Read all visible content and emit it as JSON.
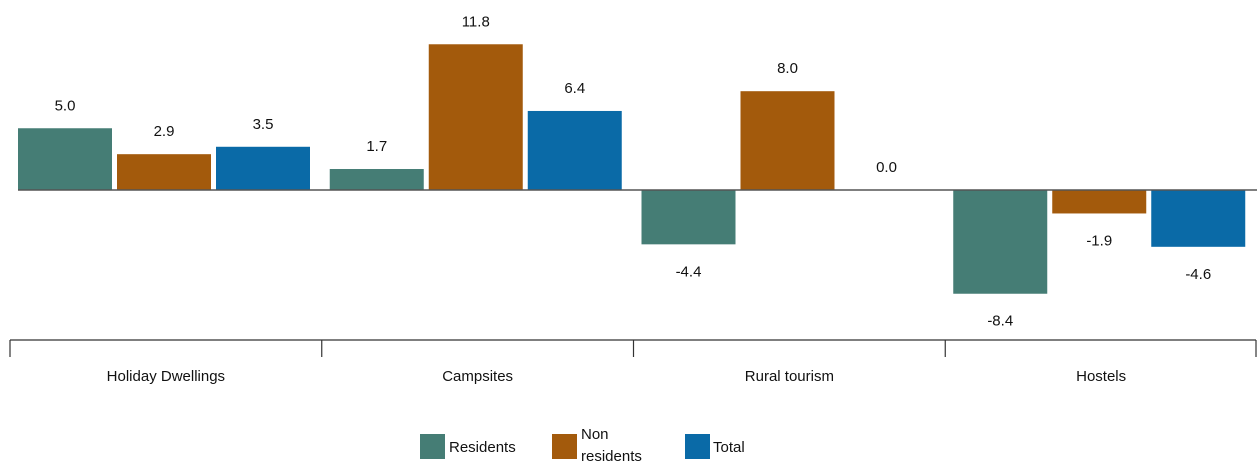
{
  "chart_data": {
    "type": "bar",
    "categories": [
      "Holiday Dwellings",
      "Campsites",
      "Rural tourism",
      "Hostels"
    ],
    "series": [
      {
        "name": "Residents",
        "color": "#457D75",
        "values": [
          5.0,
          1.7,
          -4.4,
          -8.4
        ],
        "labels": [
          "5.0",
          "1.7",
          "-4.4",
          "-8.4"
        ]
      },
      {
        "name": "Non residents",
        "color": "#A35A0C",
        "values": [
          2.9,
          11.8,
          8.0,
          -1.9
        ],
        "labels": [
          "2.9",
          "11.8",
          "8.0",
          "-1.9"
        ]
      },
      {
        "name": "Total",
        "color": "#0A6AA7",
        "values": [
          3.5,
          6.4,
          0.0,
          -4.6
        ],
        "labels": [
          "3.5",
          "6.4",
          "0.0",
          "-4.6"
        ]
      }
    ],
    "legend_position": "bottom",
    "grid": false,
    "ylim": [
      -8.4,
      11.8
    ]
  }
}
